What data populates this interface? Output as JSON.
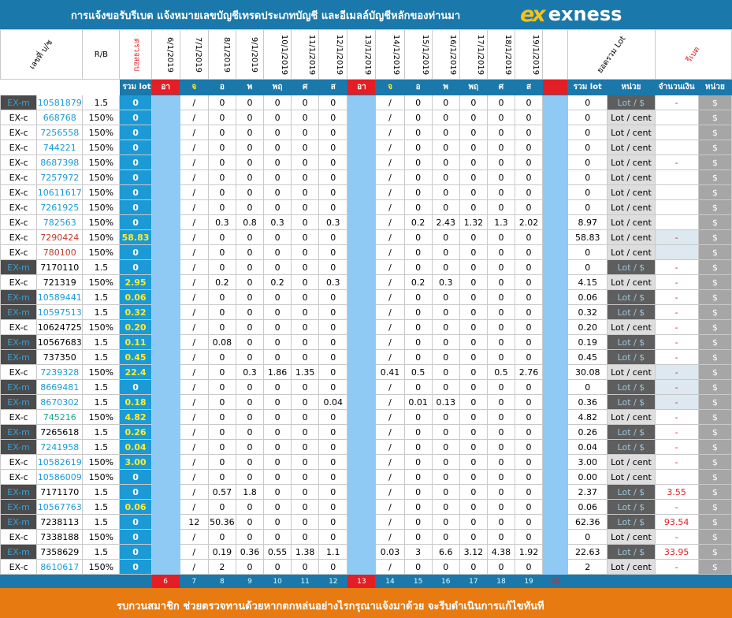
{
  "header": {
    "title": "การแจ้งขอรับรีเบต   แจ้งหมายเลขบัญชีเทรดประเภทบัญชี และอีเมลล์บัญชีหลักของท่านมา",
    "logo_mark": "ex",
    "logo_word": "exness"
  },
  "columns": {
    "account": "เลขที่ บ/ช",
    "rb": "R/B",
    "checked": "ตรวจสอบ",
    "dates": [
      "6/1/2019",
      "7/1/2019",
      "8/1/2019",
      "9/1/2019",
      "10/1/2019",
      "11/1/2019",
      "12/1/2019",
      "13/1/2019",
      "14/1/2019",
      "15/1/2019",
      "16/1/2019",
      "17/1/2019",
      "18/1/2019",
      "19/1/2019"
    ],
    "lot_sum_header": "ยอดรวม Lot",
    "rebate": "รีเบต"
  },
  "subheader": {
    "total_lot": "รวม lot",
    "days": [
      "อา",
      "จ",
      "อ",
      "พ",
      "พฤ",
      "ศ",
      "ส",
      "อา",
      "จ",
      "อ",
      "พ",
      "พฤ",
      "ศ",
      "ส"
    ],
    "sum_lot": "รวม lot",
    "unit": "หน่วย",
    "amount": "จำนวนเงิน",
    "unit2": "หน่วย"
  },
  "rows": [
    {
      "type": "EX-m",
      "acc": "10581879",
      "rb": "1.5",
      "total": "0",
      "w1": [
        "",
        "/",
        "0",
        "0",
        "0",
        "0",
        "0"
      ],
      "w2": [
        "",
        "/",
        "0",
        "0",
        "0",
        "0",
        "0"
      ],
      "sum": "0",
      "unit": "Lot / $",
      "amt": "-",
      "u2": "$",
      "acol": "blue"
    },
    {
      "type": "EX-c",
      "acc": "668768",
      "rb": "150%",
      "total": "0",
      "w1": [
        "",
        "/",
        "0",
        "0",
        "0",
        "0",
        "0"
      ],
      "w2": [
        "",
        "/",
        "0",
        "0",
        "0",
        "0",
        "0"
      ],
      "sum": "0",
      "unit": "Lot / cent",
      "amt": "",
      "u2": "$",
      "acol": "blue"
    },
    {
      "type": "EX-c",
      "acc": "7256558",
      "rb": "150%",
      "total": "0",
      "w1": [
        "",
        "/",
        "0",
        "0",
        "0",
        "0",
        "0"
      ],
      "w2": [
        "",
        "/",
        "0",
        "0",
        "0",
        "0",
        "0"
      ],
      "sum": "0",
      "unit": "Lot / cent",
      "amt": "",
      "u2": "$",
      "acol": "blue"
    },
    {
      "type": "EX-c",
      "acc": "744221",
      "rb": "150%",
      "total": "0",
      "w1": [
        "",
        "/",
        "0",
        "0",
        "0",
        "0",
        "0"
      ],
      "w2": [
        "",
        "/",
        "0",
        "0",
        "0",
        "0",
        "0"
      ],
      "sum": "0",
      "unit": "Lot / cent",
      "amt": "",
      "u2": "$",
      "acol": "blue"
    },
    {
      "type": "EX-c",
      "acc": "8687398",
      "rb": "150%",
      "total": "0",
      "w1": [
        "",
        "/",
        "0",
        "0",
        "0",
        "0",
        "0"
      ],
      "w2": [
        "",
        "/",
        "0",
        "0",
        "0",
        "0",
        "0"
      ],
      "sum": "0",
      "unit": "Lot / cent",
      "amt": "-",
      "u2": "$",
      "acol": "blue"
    },
    {
      "type": "EX-c",
      "acc": "7257972",
      "rb": "150%",
      "total": "0",
      "w1": [
        "",
        "/",
        "0",
        "0",
        "0",
        "0",
        "0"
      ],
      "w2": [
        "",
        "/",
        "0",
        "0",
        "0",
        "0",
        "0"
      ],
      "sum": "0",
      "unit": "Lot / cent",
      "amt": "",
      "u2": "$",
      "acol": "blue"
    },
    {
      "type": "EX-c",
      "acc": "10611617",
      "rb": "150%",
      "total": "0",
      "w1": [
        "",
        "/",
        "0",
        "0",
        "0",
        "0",
        "0"
      ],
      "w2": [
        "",
        "/",
        "0",
        "0",
        "0",
        "0",
        "0"
      ],
      "sum": "0",
      "unit": "Lot / cent",
      "amt": "",
      "u2": "$",
      "acol": "blue"
    },
    {
      "type": "EX-c",
      "acc": "7261925",
      "rb": "150%",
      "total": "0",
      "w1": [
        "",
        "/",
        "0",
        "0",
        "0",
        "0",
        "0"
      ],
      "w2": [
        "",
        "/",
        "0",
        "0",
        "0",
        "0",
        "0"
      ],
      "sum": "0",
      "unit": "Lot / cent",
      "amt": "",
      "u2": "$",
      "acol": "blue"
    },
    {
      "type": "EX-c",
      "acc": "782563",
      "rb": "150%",
      "total": "0",
      "w1": [
        "",
        "/",
        "0.3",
        "0.8",
        "0.3",
        "0",
        "0.3"
      ],
      "w2": [
        "",
        "/",
        "0.2",
        "2.43",
        "1.32",
        "1.3",
        "2.02"
      ],
      "sum": "8.97",
      "unit": "Lot / cent",
      "amt": "",
      "u2": "$",
      "acol": "blue"
    },
    {
      "type": "EX-c",
      "acc": "7290424",
      "rb": "150%",
      "total": "58.83",
      "w1": [
        "",
        "/",
        "0",
        "0",
        "0",
        "0",
        "0"
      ],
      "w2": [
        "",
        "/",
        "0",
        "0",
        "0",
        "0",
        "0"
      ],
      "sum": "58.83",
      "unit": "Lot / cent",
      "amt": "-",
      "u2": "$",
      "acol": "red"
    },
    {
      "type": "EX-c",
      "acc": "780100",
      "rb": "150%",
      "total": "0",
      "w1": [
        "",
        "/",
        "0",
        "0",
        "0",
        "0",
        "0"
      ],
      "w2": [
        "",
        "/",
        "0",
        "0",
        "0",
        "0",
        "0"
      ],
      "sum": "0",
      "unit": "Lot / cent",
      "amt": "",
      "u2": "$",
      "acol": "red"
    },
    {
      "type": "EX-m",
      "acc": "7170110",
      "rb": "1.5",
      "total": "0",
      "w1": [
        "",
        "/",
        "0",
        "0",
        "0",
        "0",
        "0"
      ],
      "w2": [
        "",
        "/",
        "0",
        "0",
        "0",
        "0",
        "0"
      ],
      "sum": "0",
      "unit": "Lot / $",
      "amt": "-",
      "u2": "$",
      "acol": "black"
    },
    {
      "type": "EX-c",
      "acc": "721319",
      "rb": "150%",
      "total": "2.95",
      "w1": [
        "",
        "/",
        "0.2",
        "0",
        "0.2",
        "0",
        "0.3"
      ],
      "w2": [
        "",
        "/",
        "0.2",
        "0.3",
        "0",
        "0",
        "0"
      ],
      "sum": "4.15",
      "unit": "Lot / cent",
      "amt": "-",
      "u2": "$",
      "acol": "black"
    },
    {
      "type": "EX-m",
      "acc": "10589441",
      "rb": "1.5",
      "total": "0.06",
      "w1": [
        "",
        "/",
        "0",
        "0",
        "0",
        "0",
        "0"
      ],
      "w2": [
        "",
        "/",
        "0",
        "0",
        "0",
        "0",
        "0"
      ],
      "sum": "0.06",
      "unit": "Lot / $",
      "amt": "-",
      "u2": "$",
      "acol": "blue"
    },
    {
      "type": "EX-m",
      "acc": "10597513",
      "rb": "1.5",
      "total": "0.32",
      "w1": [
        "",
        "/",
        "0",
        "0",
        "0",
        "0",
        "0"
      ],
      "w2": [
        "",
        "/",
        "0",
        "0",
        "0",
        "0",
        "0"
      ],
      "sum": "0.32",
      "unit": "Lot / $",
      "amt": "-",
      "u2": "$",
      "acol": "blue"
    },
    {
      "type": "EX-c",
      "acc": "10624725",
      "rb": "150%",
      "total": "0.20",
      "w1": [
        "",
        "/",
        "0",
        "0",
        "0",
        "0",
        "0"
      ],
      "w2": [
        "",
        "/",
        "0",
        "0",
        "0",
        "0",
        "0"
      ],
      "sum": "0.20",
      "unit": "Lot / cent",
      "amt": "-",
      "u2": "$",
      "acol": "black"
    },
    {
      "type": "EX-m",
      "acc": "10567683",
      "rb": "1.5",
      "total": "0.11",
      "w1": [
        "",
        "/",
        "0.08",
        "0",
        "0",
        "0",
        "0"
      ],
      "w2": [
        "",
        "/",
        "0",
        "0",
        "0",
        "0",
        "0"
      ],
      "sum": "0.19",
      "unit": "Lot / $",
      "amt": "-",
      "u2": "$",
      "acol": "black"
    },
    {
      "type": "EX-m",
      "acc": "737350",
      "rb": "1.5",
      "total": "0.45",
      "w1": [
        "",
        "/",
        "0",
        "0",
        "0",
        "0",
        "0"
      ],
      "w2": [
        "",
        "/",
        "0",
        "0",
        "0",
        "0",
        "0"
      ],
      "sum": "0.45",
      "unit": "Lot / $",
      "amt": "-",
      "u2": "$",
      "acol": "black"
    },
    {
      "type": "EX-c",
      "acc": "7239328",
      "rb": "150%",
      "total": "22.4",
      "w1": [
        "",
        "/",
        "0",
        "0.3",
        "1.86",
        "1.35",
        "0"
      ],
      "w2": [
        "",
        "0.41",
        "0.5",
        "0",
        "0",
        "0.5",
        "2.76"
      ],
      "sum": "30.08",
      "unit": "Lot / cent",
      "amt": "-",
      "u2": "$",
      "acol": "blue"
    },
    {
      "type": "EX-m",
      "acc": "8669481",
      "rb": "1.5",
      "total": "0",
      "w1": [
        "",
        "/",
        "0",
        "0",
        "0",
        "0",
        "0"
      ],
      "w2": [
        "",
        "/",
        "0",
        "0",
        "0",
        "0",
        "0"
      ],
      "sum": "0",
      "unit": "Lot / $",
      "amt": "-",
      "u2": "$",
      "acol": "blue"
    },
    {
      "type": "EX-m",
      "acc": "8670302",
      "rb": "1.5",
      "total": "0.18",
      "w1": [
        "",
        "/",
        "0",
        "0",
        "0",
        "0",
        "0.04"
      ],
      "w2": [
        "",
        "/",
        "0.01",
        "0.13",
        "0",
        "0",
        "0"
      ],
      "sum": "0.36",
      "unit": "Lot / $",
      "amt": "-",
      "u2": "$",
      "acol": "blue"
    },
    {
      "type": "EX-c",
      "acc": "745216",
      "rb": "150%",
      "total": "4.82",
      "w1": [
        "",
        "/",
        "0",
        "0",
        "0",
        "0",
        "0"
      ],
      "w2": [
        "",
        "/",
        "0",
        "0",
        "0",
        "0",
        "0"
      ],
      "sum": "4.82",
      "unit": "Lot / cent",
      "amt": "-",
      "u2": "$",
      "acol": "green"
    },
    {
      "type": "EX-m",
      "acc": "7265618",
      "rb": "1.5",
      "total": "0.26",
      "w1": [
        "",
        "/",
        "0",
        "0",
        "0",
        "0",
        "0"
      ],
      "w2": [
        "",
        "/",
        "0",
        "0",
        "0",
        "0",
        "0"
      ],
      "sum": "0.26",
      "unit": "Lot / $",
      "amt": "-",
      "u2": "$",
      "acol": "black"
    },
    {
      "type": "EX-m",
      "acc": "7241958",
      "rb": "1.5",
      "total": "0.04",
      "w1": [
        "",
        "/",
        "0",
        "0",
        "0",
        "0",
        "0"
      ],
      "w2": [
        "",
        "/",
        "0",
        "0",
        "0",
        "0",
        "0"
      ],
      "sum": "0.04",
      "unit": "Lot / $",
      "amt": "-",
      "u2": "$",
      "acol": "blue"
    },
    {
      "type": "EX-c",
      "acc": "10582619",
      "rb": "150%",
      "total": "3.00",
      "w1": [
        "",
        "/",
        "0",
        "0",
        "0",
        "0",
        "0"
      ],
      "w2": [
        "",
        "/",
        "0",
        "0",
        "0",
        "0",
        "0"
      ],
      "sum": "3.00",
      "unit": "Lot / cent",
      "amt": "-",
      "u2": "$",
      "acol": "blue"
    },
    {
      "type": "EX-c",
      "acc": "10586009",
      "rb": "150%",
      "total": "0",
      "w1": [
        "",
        "/",
        "0",
        "0",
        "0",
        "0",
        "0"
      ],
      "w2": [
        "",
        "/",
        "0",
        "0",
        "0",
        "0",
        "0"
      ],
      "sum": "0.00",
      "unit": "Lot / cent",
      "amt": "",
      "u2": "$",
      "acol": "blue"
    },
    {
      "type": "EX-m",
      "acc": "7171170",
      "rb": "1.5",
      "total": "0",
      "w1": [
        "",
        "/",
        "0.57",
        "1.8",
        "0",
        "0",
        "0"
      ],
      "w2": [
        "",
        "/",
        "0",
        "0",
        "0",
        "0",
        "0"
      ],
      "sum": "2.37",
      "unit": "Lot / $",
      "amt": "3.55",
      "u2": "$",
      "acol": "black"
    },
    {
      "type": "EX-m",
      "acc": "10567763",
      "rb": "1.5",
      "total": "0.06",
      "w1": [
        "",
        "/",
        "0",
        "0",
        "0",
        "0",
        "0"
      ],
      "w2": [
        "",
        "/",
        "0",
        "0",
        "0",
        "0",
        "0"
      ],
      "sum": "0.06",
      "unit": "Lot / $",
      "amt": "-",
      "u2": "$",
      "acol": "blue"
    },
    {
      "type": "EX-m",
      "acc": "7238113",
      "rb": "1.5",
      "total": "0",
      "w1": [
        "",
        "12",
        "50.36",
        "0",
        "0",
        "0",
        "0"
      ],
      "w2": [
        "",
        "/",
        "0",
        "0",
        "0",
        "0",
        "0"
      ],
      "sum": "62.36",
      "unit": "Lot / $",
      "amt": "93.54",
      "u2": "$",
      "acol": "black"
    },
    {
      "type": "EX-c",
      "acc": "7338188",
      "rb": "150%",
      "total": "0",
      "w1": [
        "",
        "/",
        "0",
        "0",
        "0",
        "0",
        "0"
      ],
      "w2": [
        "",
        "/",
        "0",
        "0",
        "0",
        "0",
        "0"
      ],
      "sum": "0",
      "unit": "Lot / cent",
      "amt": "-",
      "u2": "$",
      "acol": "black"
    },
    {
      "type": "EX-m",
      "acc": "7358629",
      "rb": "1.5",
      "total": "0",
      "w1": [
        "",
        "/",
        "0.19",
        "0.36",
        "0.55",
        "1.38",
        "1.1"
      ],
      "w2": [
        "",
        "0.03",
        "3",
        "6.6",
        "3.12",
        "4.38",
        "1.92"
      ],
      "sum": "22.63",
      "unit": "Lot / $",
      "amt": "33.95",
      "u2": "$",
      "acol": "black"
    },
    {
      "type": "EX-c",
      "acc": "8610617",
      "rb": "150%",
      "total": "0",
      "w1": [
        "",
        "/",
        "2",
        "0",
        "0",
        "0",
        "0"
      ],
      "w2": [
        "",
        "/",
        "0",
        "0",
        "0",
        "0",
        "0"
      ],
      "sum": "2",
      "unit": "Lot / cent",
      "amt": "-",
      "u2": "$",
      "acol": "blue"
    }
  ],
  "footer_days": [
    "6",
    "7",
    "8",
    "9",
    "10",
    "11",
    "12",
    "13",
    "14",
    "15",
    "16",
    "17",
    "18",
    "19",
    "20"
  ],
  "footer_message": "รบกวนสมาชิก ช่วยตรวจทานด้วยหากตกหล่นอย่างไรกรุณาแจ้งมาด้วย จะรีบดำเนินการแก้ไขทันที"
}
